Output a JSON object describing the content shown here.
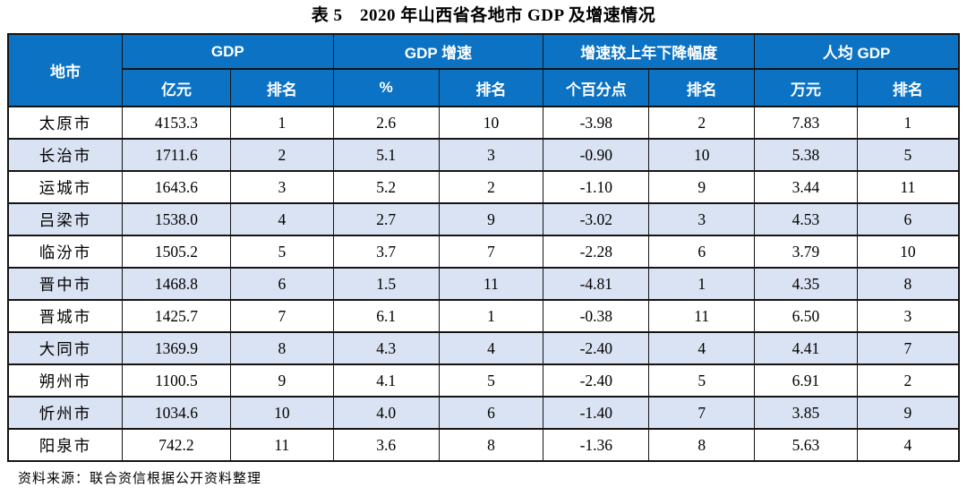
{
  "title": "表 5　2020 年山西省各地市 GDP 及增速情况",
  "source_note": "资料来源：联合资信根据公开资料整理",
  "colors": {
    "header_bg": "#0b72c4",
    "header_text": "#ffffff",
    "row_alt_bg": "#dae3f3",
    "border": "#141414"
  },
  "table": {
    "group_headers": {
      "city": "地市",
      "gdp": "GDP",
      "gdp_growth": "GDP 增速",
      "growth_decline": "增速较上年下降幅度",
      "per_capita_gdp": "人均 GDP"
    },
    "sub_headers": {
      "gdp_unit": "亿元",
      "gdp_rank": "排名",
      "growth_unit": "%",
      "growth_rank": "排名",
      "decline_unit": "个百分点",
      "decline_rank": "排名",
      "per_capita_unit": "万元",
      "per_capita_rank": "排名"
    },
    "columns": [
      "city",
      "gdp",
      "gdp_rank",
      "growth",
      "growth_rank",
      "decline",
      "decline_rank",
      "per_capita_gdp",
      "per_capita_rank"
    ],
    "rows": [
      {
        "city": "太原市",
        "gdp": "4153.3",
        "gdp_rank": "1",
        "growth": "2.6",
        "growth_rank": "10",
        "decline": "-3.98",
        "decline_rank": "2",
        "per_capita_gdp": "7.83",
        "per_capita_rank": "1"
      },
      {
        "city": "长治市",
        "gdp": "1711.6",
        "gdp_rank": "2",
        "growth": "5.1",
        "growth_rank": "3",
        "decline": "-0.90",
        "decline_rank": "10",
        "per_capita_gdp": "5.38",
        "per_capita_rank": "5"
      },
      {
        "city": "运城市",
        "gdp": "1643.6",
        "gdp_rank": "3",
        "growth": "5.2",
        "growth_rank": "2",
        "decline": "-1.10",
        "decline_rank": "9",
        "per_capita_gdp": "3.44",
        "per_capita_rank": "11"
      },
      {
        "city": "吕梁市",
        "gdp": "1538.0",
        "gdp_rank": "4",
        "growth": "2.7",
        "growth_rank": "9",
        "decline": "-3.02",
        "decline_rank": "3",
        "per_capita_gdp": "4.53",
        "per_capita_rank": "6"
      },
      {
        "city": "临汾市",
        "gdp": "1505.2",
        "gdp_rank": "5",
        "growth": "3.7",
        "growth_rank": "7",
        "decline": "-2.28",
        "decline_rank": "6",
        "per_capita_gdp": "3.79",
        "per_capita_rank": "10"
      },
      {
        "city": "晋中市",
        "gdp": "1468.8",
        "gdp_rank": "6",
        "growth": "1.5",
        "growth_rank": "11",
        "decline": "-4.81",
        "decline_rank": "1",
        "per_capita_gdp": "4.35",
        "per_capita_rank": "8"
      },
      {
        "city": "晋城市",
        "gdp": "1425.7",
        "gdp_rank": "7",
        "growth": "6.1",
        "growth_rank": "1",
        "decline": "-0.38",
        "decline_rank": "11",
        "per_capita_gdp": "6.50",
        "per_capita_rank": "3"
      },
      {
        "city": "大同市",
        "gdp": "1369.9",
        "gdp_rank": "8",
        "growth": "4.3",
        "growth_rank": "4",
        "decline": "-2.40",
        "decline_rank": "4",
        "per_capita_gdp": "4.41",
        "per_capita_rank": "7"
      },
      {
        "city": "朔州市",
        "gdp": "1100.5",
        "gdp_rank": "9",
        "growth": "4.1",
        "growth_rank": "5",
        "decline": "-2.40",
        "decline_rank": "5",
        "per_capita_gdp": "6.91",
        "per_capita_rank": "2"
      },
      {
        "city": "忻州市",
        "gdp": "1034.6",
        "gdp_rank": "10",
        "growth": "4.0",
        "growth_rank": "6",
        "decline": "-1.40",
        "decline_rank": "7",
        "per_capita_gdp": "3.85",
        "per_capita_rank": "9"
      },
      {
        "city": "阳泉市",
        "gdp": "742.2",
        "gdp_rank": "11",
        "growth": "3.6",
        "growth_rank": "8",
        "decline": "-1.36",
        "decline_rank": "8",
        "per_capita_gdp": "5.63",
        "per_capita_rank": "4"
      }
    ]
  }
}
